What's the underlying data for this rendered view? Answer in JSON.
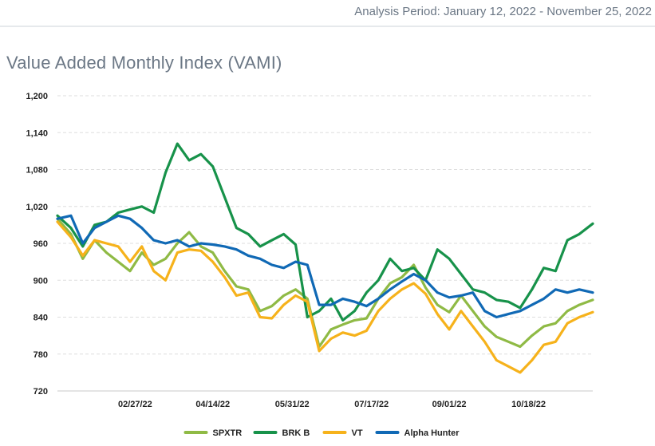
{
  "header": {
    "analysis_period": "Analysis Period: January 12, 2022 - November 25, 2022"
  },
  "chart_title": "Value Added Monthly Index (VAMI)",
  "chart_data": {
    "type": "line",
    "title": "Value Added Monthly Index (VAMI)",
    "xlabel": "",
    "ylabel": "",
    "ylim": [
      720,
      1200
    ],
    "yticks": [
      720,
      780,
      840,
      900,
      960,
      1020,
      1080,
      1140,
      1200
    ],
    "ytick_labels": [
      "720",
      "780",
      "840",
      "900",
      "960",
      "1,020",
      "1,080",
      "1,140",
      "1,200"
    ],
    "xlim": [
      "2022-01-12",
      "2022-11-25"
    ],
    "xticks": [
      "2022-02-27",
      "2022-04-14",
      "2022-05-31",
      "2022-07-17",
      "2022-09-01",
      "2022-10-18"
    ],
    "xtick_labels": [
      "02/27/22",
      "04/14/22",
      "05/31/22",
      "07/17/22",
      "09/01/22",
      "10/18/22"
    ],
    "grid": "horizontal dashed",
    "legend": "bottom-center",
    "series": [
      {
        "name": "SPXTR",
        "color": "#8fba45",
        "x": [
          "2022-01-12",
          "2022-01-20",
          "2022-01-27",
          "2022-02-03",
          "2022-02-10",
          "2022-02-17",
          "2022-02-24",
          "2022-03-03",
          "2022-03-10",
          "2022-03-17",
          "2022-03-24",
          "2022-03-31",
          "2022-04-07",
          "2022-04-14",
          "2022-04-21",
          "2022-04-28",
          "2022-05-05",
          "2022-05-12",
          "2022-05-19",
          "2022-05-26",
          "2022-06-02",
          "2022-06-09",
          "2022-06-16",
          "2022-06-23",
          "2022-06-30",
          "2022-07-07",
          "2022-07-14",
          "2022-07-21",
          "2022-07-28",
          "2022-08-04",
          "2022-08-11",
          "2022-08-18",
          "2022-08-25",
          "2022-09-01",
          "2022-09-08",
          "2022-09-15",
          "2022-09-22",
          "2022-09-29",
          "2022-10-06",
          "2022-10-13",
          "2022-10-20",
          "2022-10-27",
          "2022-11-03",
          "2022-11-10",
          "2022-11-17",
          "2022-11-25"
        ],
        "values": [
          1000,
          975,
          935,
          965,
          945,
          930,
          915,
          945,
          925,
          935,
          960,
          978,
          955,
          945,
          915,
          890,
          885,
          850,
          858,
          875,
          885,
          870,
          792,
          820,
          828,
          835,
          838,
          870,
          895,
          905,
          925,
          888,
          860,
          848,
          875,
          850,
          825,
          808,
          800,
          792,
          810,
          825,
          830,
          850,
          860,
          868
        ]
      },
      {
        "name": "BRK B",
        "color": "#17924a",
        "x": [
          "2022-01-12",
          "2022-01-20",
          "2022-01-27",
          "2022-02-03",
          "2022-02-10",
          "2022-02-17",
          "2022-02-24",
          "2022-03-03",
          "2022-03-10",
          "2022-03-17",
          "2022-03-24",
          "2022-03-31",
          "2022-04-07",
          "2022-04-14",
          "2022-04-21",
          "2022-04-28",
          "2022-05-05",
          "2022-05-12",
          "2022-05-19",
          "2022-05-26",
          "2022-06-02",
          "2022-06-09",
          "2022-06-16",
          "2022-06-23",
          "2022-06-30",
          "2022-07-07",
          "2022-07-14",
          "2022-07-21",
          "2022-07-28",
          "2022-08-04",
          "2022-08-11",
          "2022-08-18",
          "2022-08-25",
          "2022-09-01",
          "2022-09-08",
          "2022-09-15",
          "2022-09-22",
          "2022-09-29",
          "2022-10-06",
          "2022-10-13",
          "2022-10-20",
          "2022-10-27",
          "2022-11-03",
          "2022-11-10",
          "2022-11-17",
          "2022-11-25"
        ],
        "values": [
          1005,
          985,
          955,
          990,
          995,
          1010,
          1015,
          1020,
          1010,
          1075,
          1122,
          1095,
          1105,
          1085,
          1035,
          985,
          975,
          955,
          965,
          975,
          958,
          840,
          850,
          870,
          835,
          850,
          880,
          900,
          935,
          915,
          920,
          900,
          950,
          935,
          910,
          885,
          880,
          868,
          865,
          855,
          885,
          920,
          915,
          965,
          975,
          992
        ]
      },
      {
        "name": "VT",
        "color": "#f6b21b",
        "x": [
          "2022-01-12",
          "2022-01-20",
          "2022-01-27",
          "2022-02-03",
          "2022-02-10",
          "2022-02-17",
          "2022-02-24",
          "2022-03-03",
          "2022-03-10",
          "2022-03-17",
          "2022-03-24",
          "2022-03-31",
          "2022-04-07",
          "2022-04-14",
          "2022-04-21",
          "2022-04-28",
          "2022-05-05",
          "2022-05-12",
          "2022-05-19",
          "2022-05-26",
          "2022-06-02",
          "2022-06-09",
          "2022-06-16",
          "2022-06-23",
          "2022-06-30",
          "2022-07-07",
          "2022-07-14",
          "2022-07-21",
          "2022-07-28",
          "2022-08-04",
          "2022-08-11",
          "2022-08-18",
          "2022-08-25",
          "2022-09-01",
          "2022-09-08",
          "2022-09-15",
          "2022-09-22",
          "2022-09-29",
          "2022-10-06",
          "2022-10-13",
          "2022-10-20",
          "2022-10-27",
          "2022-11-03",
          "2022-11-10",
          "2022-11-17",
          "2022-11-25"
        ],
        "values": [
          995,
          970,
          940,
          965,
          960,
          955,
          930,
          955,
          915,
          900,
          945,
          950,
          948,
          930,
          905,
          875,
          880,
          840,
          838,
          860,
          875,
          865,
          785,
          805,
          815,
          810,
          818,
          850,
          870,
          885,
          895,
          878,
          845,
          820,
          850,
          825,
          800,
          770,
          760,
          750,
          770,
          795,
          800,
          830,
          840,
          848
        ]
      },
      {
        "name": "Alpha Hunter",
        "color": "#1069b5",
        "x": [
          "2022-01-12",
          "2022-01-20",
          "2022-01-27",
          "2022-02-03",
          "2022-02-10",
          "2022-02-17",
          "2022-02-24",
          "2022-03-03",
          "2022-03-10",
          "2022-03-17",
          "2022-03-24",
          "2022-03-31",
          "2022-04-07",
          "2022-04-14",
          "2022-04-21",
          "2022-04-28",
          "2022-05-05",
          "2022-05-12",
          "2022-05-19",
          "2022-05-26",
          "2022-06-02",
          "2022-06-09",
          "2022-06-16",
          "2022-06-23",
          "2022-06-30",
          "2022-07-07",
          "2022-07-14",
          "2022-07-21",
          "2022-07-28",
          "2022-08-04",
          "2022-08-11",
          "2022-08-18",
          "2022-08-25",
          "2022-09-01",
          "2022-09-08",
          "2022-09-15",
          "2022-09-22",
          "2022-09-29",
          "2022-10-06",
          "2022-10-13",
          "2022-10-20",
          "2022-10-27",
          "2022-11-03",
          "2022-11-10",
          "2022-11-17",
          "2022-11-25"
        ],
        "values": [
          1000,
          1005,
          960,
          985,
          995,
          1005,
          1000,
          985,
          965,
          960,
          965,
          955,
          960,
          958,
          955,
          950,
          940,
          935,
          925,
          920,
          930,
          925,
          860,
          860,
          870,
          865,
          858,
          870,
          885,
          898,
          910,
          900,
          880,
          872,
          875,
          880,
          850,
          840,
          845,
          850,
          860,
          870,
          885,
          880,
          885,
          880
        ]
      }
    ]
  }
}
